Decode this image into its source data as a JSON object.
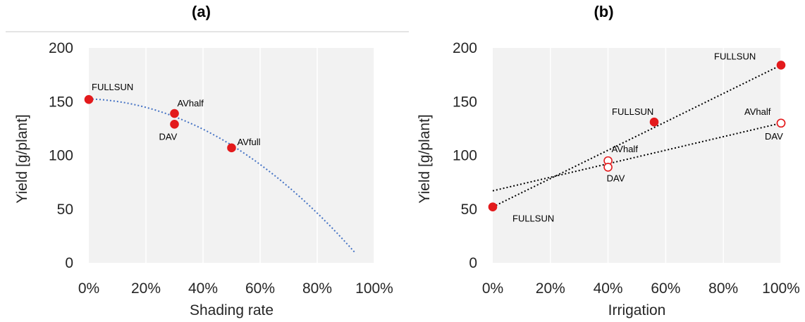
{
  "panels": {
    "a": {
      "title": "(a)"
    },
    "b": {
      "title": "(b)"
    }
  },
  "chart_data": [
    {
      "id": "a",
      "type": "scatter",
      "title": "(a)",
      "xlabel": "Shading rate",
      "ylabel": "Yield [g/plant]",
      "xlim": [
        0,
        100
      ],
      "ylim": [
        0,
        200
      ],
      "x_ticks": [
        "0%",
        "20%",
        "40%",
        "60%",
        "80%",
        "100%"
      ],
      "y_ticks": [
        "0",
        "50",
        "100",
        "150",
        "200"
      ],
      "x_tick_values": [
        0,
        20,
        40,
        60,
        80,
        100
      ],
      "y_tick_values": [
        0,
        50,
        100,
        150,
        200
      ],
      "plot_background": "#f2f2f2",
      "grid": "vertical",
      "points": [
        {
          "x": 0,
          "y": 152,
          "label": "FULLSUN",
          "filled": true
        },
        {
          "x": 30,
          "y": 139,
          "label": "AVhalf",
          "filled": true
        },
        {
          "x": 30,
          "y": 129,
          "label": "DAV",
          "filled": true
        },
        {
          "x": 50,
          "y": 107,
          "label": "AVfull",
          "filled": true
        }
      ],
      "trendlines": [
        {
          "kind": "quadratic",
          "coefficients": [
            152.5,
            -0.08,
            -0.0156
          ],
          "x_range": [
            0,
            93
          ],
          "color": "#4472c4",
          "style": "dotted"
        }
      ],
      "point_color": "#e31a1c"
    },
    {
      "id": "b",
      "type": "scatter",
      "title": "(b)",
      "xlabel": "Irrigation",
      "ylabel": "Yield [g/plant]",
      "xlim": [
        0,
        100
      ],
      "ylim": [
        0,
        200
      ],
      "x_ticks": [
        "0%",
        "20%",
        "40%",
        "60%",
        "80%",
        "100%"
      ],
      "y_ticks": [
        "0",
        "50",
        "100",
        "150",
        "200"
      ],
      "x_tick_values": [
        0,
        20,
        40,
        60,
        80,
        100
      ],
      "y_tick_values": [
        0,
        50,
        100,
        150,
        200
      ],
      "plot_background": "#f2f2f2",
      "grid": "vertical",
      "points": [
        {
          "x": 0,
          "y": 52,
          "label": "FULLSUN",
          "filled": true
        },
        {
          "x": 56,
          "y": 131,
          "label": "FULLSUN",
          "filled": true
        },
        {
          "x": 100,
          "y": 184,
          "label": "FULLSUN",
          "filled": true
        },
        {
          "x": 40,
          "y": 95,
          "label": "AVhalf",
          "filled": false
        },
        {
          "x": 40,
          "y": 89,
          "label": "DAV",
          "filled": false
        },
        {
          "x": 100,
          "y": 130,
          "label": "AVhalf",
          "filled": false
        },
        {
          "x": 100,
          "y": 130,
          "label": "DAV",
          "filled": false
        }
      ],
      "trendlines": [
        {
          "kind": "linear",
          "x_range": [
            0,
            100
          ],
          "y_range": [
            52,
            184
          ],
          "color": "#000000",
          "style": "dotted"
        },
        {
          "kind": "linear",
          "x_range": [
            0,
            100
          ],
          "y_range": [
            67,
            130
          ],
          "color": "#000000",
          "style": "dotted"
        }
      ],
      "point_color": "#e31a1c"
    }
  ]
}
